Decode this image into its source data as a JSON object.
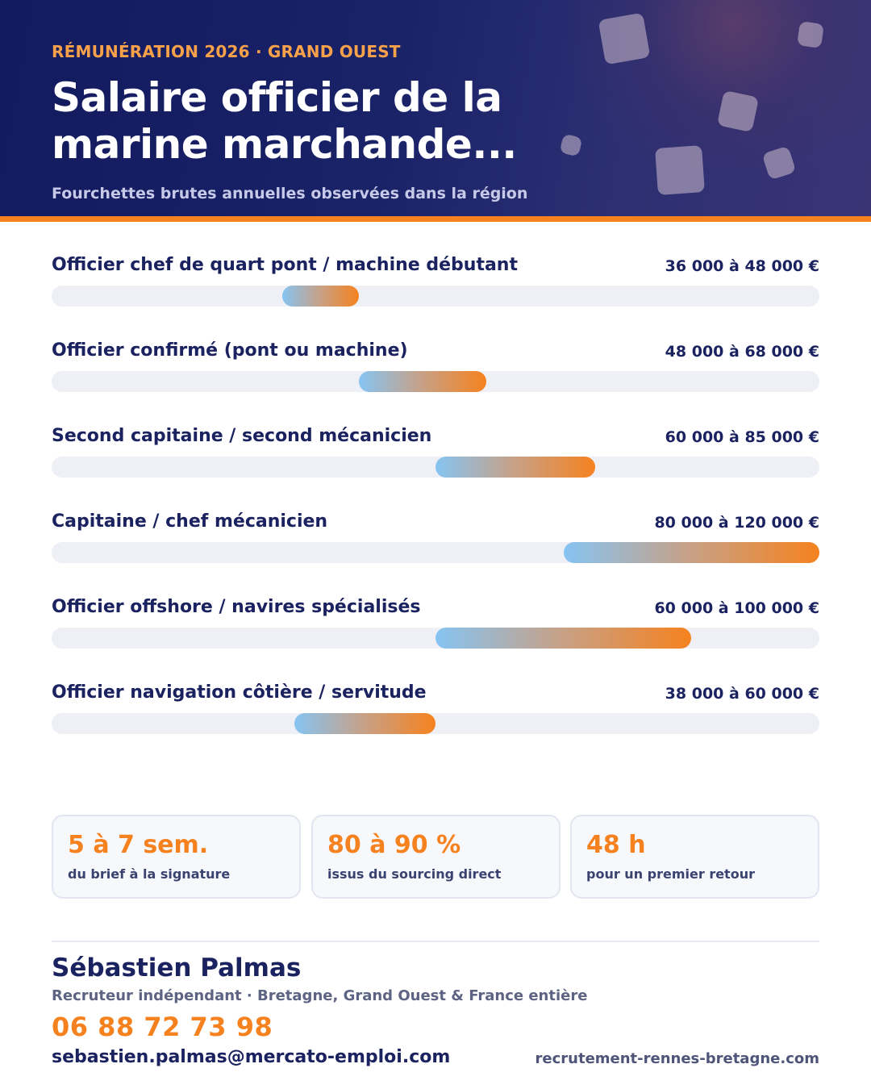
{
  "header": {
    "eyebrow": "RÉMUNÉRATION 2026 · GRAND OUEST",
    "title": "Salaire officier de la marine marchande...",
    "subtitle": "Fourchettes brutes annuelles observées dans la région"
  },
  "colors": {
    "navy": "#1b2260",
    "orange": "#f5821f",
    "bar_start": "#86c4f2",
    "bar_end": "#f5821f",
    "track": "#eef0f6"
  },
  "chart_data": {
    "type": "bar",
    "orientation": "horizontal-range",
    "scale_min": 0,
    "scale_max": 120000,
    "rows": [
      {
        "label": "Officier chef de quart pont / machine débutant",
        "min": 36000,
        "max": 48000,
        "value_label": "36 000 à 48 000 €"
      },
      {
        "label": "Officier confirmé (pont ou machine)",
        "min": 48000,
        "max": 68000,
        "value_label": "48 000 à 68 000 €"
      },
      {
        "label": "Second capitaine / second mécanicien",
        "min": 60000,
        "max": 85000,
        "value_label": "60 000 à 85 000 €"
      },
      {
        "label": "Capitaine / chef mécanicien",
        "min": 80000,
        "max": 120000,
        "value_label": "80 000 à 120 000 €"
      },
      {
        "label": "Officier offshore / navires spécialisés",
        "min": 60000,
        "max": 100000,
        "value_label": "60 000 à 100 000 €"
      },
      {
        "label": "Officier navigation côtière / servitude",
        "min": 38000,
        "max": 60000,
        "value_label": "38 000 à 60 000 €"
      }
    ]
  },
  "stats": [
    {
      "value": "5 à 7 sem.",
      "caption": "du brief à la signature"
    },
    {
      "value": "80 à 90 %",
      "caption": "issus du sourcing direct"
    },
    {
      "value": "48 h",
      "caption": "pour un premier retour"
    }
  ],
  "contact": {
    "name": "Sébastien Palmas",
    "role": "Recruteur indépendant · Bretagne, Grand Ouest & France entière",
    "phone": "06 88 72 73 98",
    "email": "sebastien.palmas@mercato-emploi.com",
    "website": "recrutement-rennes-bretagne.com"
  }
}
